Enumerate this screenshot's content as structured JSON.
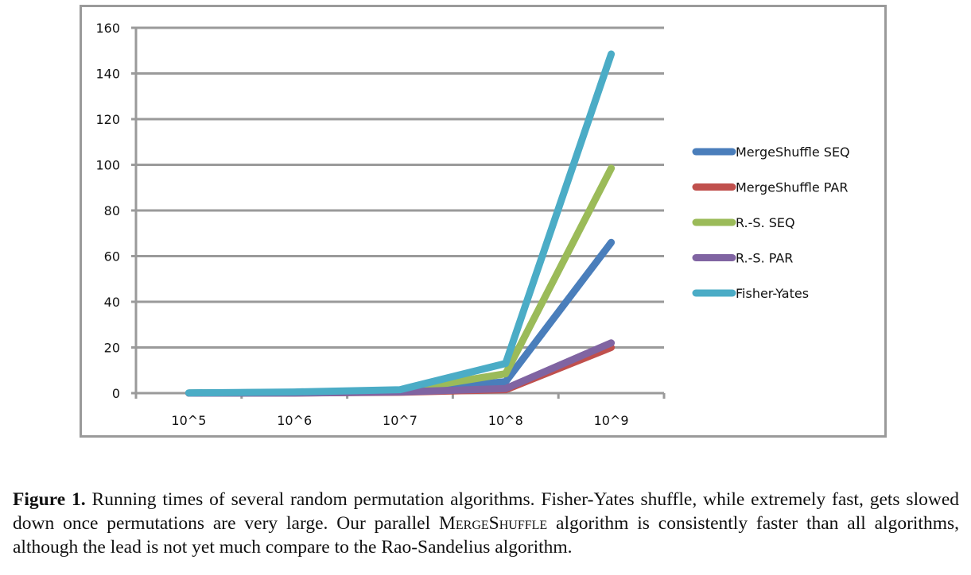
{
  "chart_data": {
    "type": "line",
    "title": "",
    "xlabel": "",
    "ylabel": "",
    "categories": [
      "10^5",
      "10^6",
      "10^7",
      "10^8",
      "10^9"
    ],
    "ylim": [
      0,
      160
    ],
    "yticks": [
      0,
      20,
      40,
      60,
      80,
      100,
      120,
      140,
      160
    ],
    "ytick_labels": [
      "0",
      "20",
      "40",
      "60",
      "80",
      "100",
      "120",
      "140",
      "160"
    ],
    "grid": true,
    "legend_position": "right",
    "series": [
      {
        "name": "MergeShuffle SEQ",
        "color": "#4a7ebb",
        "values": [
          0.05,
          0.3,
          0.8,
          5,
          66
        ]
      },
      {
        "name": "MergeShuffle PAR",
        "color": "#c0504d",
        "values": [
          0,
          0.05,
          0.4,
          1.5,
          20
        ]
      },
      {
        "name": "R.-S. SEQ",
        "color": "#9bbb59",
        "values": [
          0.05,
          0.3,
          1,
          8.5,
          98.5
        ]
      },
      {
        "name": "R.-S. PAR",
        "color": "#8064a2",
        "values": [
          0,
          0.05,
          0.5,
          2,
          22
        ]
      },
      {
        "name": "Fisher-Yates",
        "color": "#4bacc6",
        "values": [
          0.1,
          0.5,
          1.5,
          13,
          148.5
        ]
      }
    ]
  },
  "caption": {
    "label": "Figure 1.",
    "text_before": " Running times of several random permutation algorithms. Fisher-Yates shuffle, while extremely fast, gets slowed down once permutations are very large. Our parallel ",
    "smallcaps": "MergeShuffle",
    "text_after": " algorithm is consistently faster than all algorithms, although the lead is not yet much compare to the Rao-Sandelius algorithm."
  },
  "colors": {
    "gridline": "#9a9a9a",
    "frame": "#9a9a9a"
  }
}
